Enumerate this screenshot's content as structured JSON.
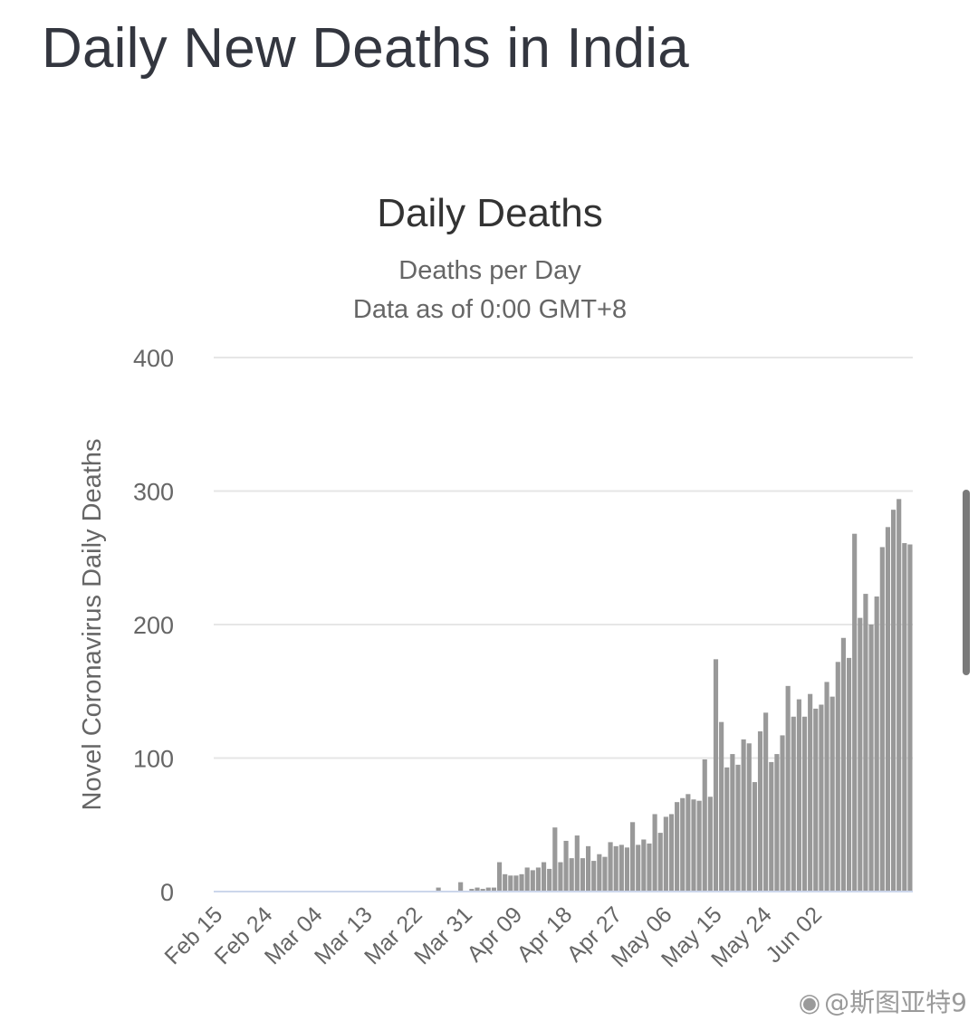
{
  "page": {
    "title": "Daily New Deaths in India"
  },
  "watermark": {
    "icon": "weibo-icon",
    "text": "@斯图亚特9"
  },
  "colors": {
    "bar": "#999999",
    "grid": "#e6e6e6",
    "axis": "#ccd6eb",
    "text": "#666666",
    "title": "#333333"
  },
  "chart_data": {
    "type": "bar",
    "title": "Daily Deaths",
    "subtitle": "Deaths per Day",
    "subtitle2": "Data as of 0:00 GMT+8",
    "ylabel": "Novel Coronavirus Daily Deaths",
    "xlabel": "",
    "ylim": [
      0,
      400
    ],
    "yticks": [
      0,
      100,
      200,
      300,
      400
    ],
    "x_start": "Feb 15",
    "x_tick_labels": [
      "Feb 15",
      "Feb 24",
      "Mar 04",
      "Mar 13",
      "Mar 22",
      "Mar 31",
      "Apr 09",
      "Apr 18",
      "Apr 27",
      "May 06",
      "May 15",
      "May 24",
      "Jun 02"
    ],
    "x_tick_every": 9,
    "grid": true,
    "legend": "none",
    "series": [
      {
        "values": [
          0,
          0,
          0,
          0,
          0,
          0,
          0,
          0,
          0,
          0,
          0,
          0,
          0,
          0,
          0,
          0,
          0,
          0,
          0,
          0,
          0,
          0,
          0,
          0,
          0,
          0,
          0,
          0,
          0,
          0,
          0,
          0,
          0,
          0,
          0,
          0,
          0,
          0,
          0,
          0,
          3,
          0,
          0,
          0,
          7,
          0,
          2,
          3,
          2,
          3,
          3,
          22,
          13,
          12,
          12,
          13,
          18,
          16,
          18,
          22,
          17,
          48,
          22,
          38,
          25,
          42,
          25,
          34,
          23,
          28,
          26,
          37,
          34,
          35,
          33,
          52,
          35,
          39,
          36,
          58,
          44,
          56,
          58,
          67,
          70,
          73,
          69,
          68,
          99,
          71,
          174,
          127,
          93,
          103,
          95,
          114,
          111,
          82,
          120,
          134,
          97,
          103,
          117,
          154,
          131,
          144,
          131,
          148,
          137,
          140,
          157,
          146,
          172,
          190,
          175,
          268,
          205,
          223,
          200,
          221,
          258,
          273,
          286,
          294,
          261,
          260
        ]
      }
    ]
  }
}
